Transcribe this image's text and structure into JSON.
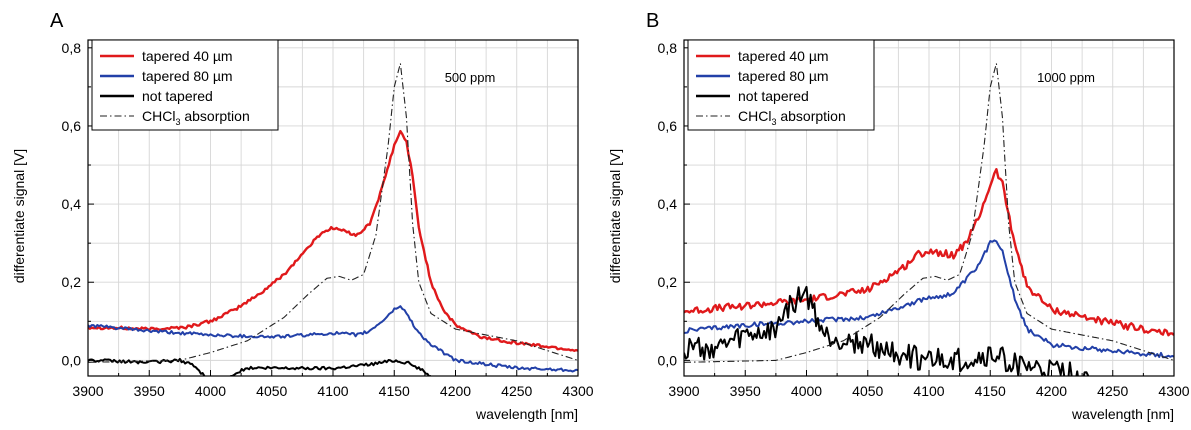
{
  "chart_data": [
    {
      "type": "line",
      "panel_label": "A",
      "annotation": "500 ppm",
      "xlabel": "wavelength [nm]",
      "ylabel": "differentiate signal [V]",
      "xlim": [
        3900,
        4300
      ],
      "ylim": [
        -0.04,
        0.82
      ],
      "xticks": [
        3900,
        3950,
        4000,
        4050,
        4100,
        4150,
        4200,
        4250,
        4300
      ],
      "xtick_labels": [
        "3900",
        "3950",
        "4000",
        "4050",
        "4100",
        "4150",
        "4200",
        "4250",
        "4300"
      ],
      "yticks": [
        0.0,
        0.2,
        0.4,
        0.6,
        0.8
      ],
      "ytick_labels": [
        "0,0",
        "0,2",
        "0,4",
        "0,6",
        "0,8"
      ],
      "grid": true,
      "legend_position": "top-left",
      "series": [
        {
          "name": "tapered 40 µm",
          "color": "#e0191b",
          "style": "solid",
          "noise": 0.004,
          "x": [
            3900,
            3950,
            3980,
            4000,
            4020,
            4040,
            4060,
            4080,
            4090,
            4100,
            4110,
            4120,
            4130,
            4140,
            4150,
            4155,
            4160,
            4165,
            4170,
            4180,
            4190,
            4200,
            4220,
            4250,
            4300
          ],
          "y": [
            0.085,
            0.08,
            0.085,
            0.1,
            0.13,
            0.17,
            0.22,
            0.29,
            0.325,
            0.34,
            0.33,
            0.32,
            0.35,
            0.44,
            0.55,
            0.585,
            0.56,
            0.47,
            0.34,
            0.2,
            0.13,
            0.09,
            0.06,
            0.045,
            0.025
          ]
        },
        {
          "name": "tapered 80 µm",
          "color": "#2240a8",
          "style": "solid",
          "noise": 0.004,
          "x": [
            3900,
            3950,
            4000,
            4050,
            4080,
            4100,
            4120,
            4130,
            4140,
            4150,
            4155,
            4160,
            4170,
            4180,
            4200,
            4250,
            4300
          ],
          "y": [
            0.09,
            0.075,
            0.065,
            0.06,
            0.065,
            0.07,
            0.065,
            0.075,
            0.1,
            0.13,
            0.14,
            0.12,
            0.07,
            0.04,
            0.0,
            -0.02,
            -0.025
          ]
        },
        {
          "name": "not tapered",
          "color": "#000000",
          "style": "solid",
          "noise": 0.004,
          "x": [
            3900,
            3950,
            3975,
            3985,
            3995,
            4000,
            4015,
            4030,
            4060,
            4100,
            4130,
            4150,
            4160,
            4170,
            4180
          ],
          "y": [
            0.0,
            -0.005,
            0.0,
            -0.01,
            -0.04,
            null,
            -0.04,
            -0.02,
            -0.02,
            -0.02,
            -0.01,
            0.0,
            -0.005,
            -0.02,
            -0.04
          ]
        },
        {
          "name": "CHCl3 absorption",
          "color": "#222222",
          "style": "dashdot",
          "noise": 0,
          "x": [
            3900,
            3975,
            4000,
            4030,
            4060,
            4080,
            4095,
            4105,
            4115,
            4125,
            4135,
            4145,
            4150,
            4155,
            4160,
            4165,
            4170,
            4180,
            4200,
            4250,
            4300
          ],
          "y": [
            -0.005,
            0.0,
            0.02,
            0.05,
            0.11,
            0.17,
            0.21,
            0.215,
            0.205,
            0.22,
            0.32,
            0.55,
            0.7,
            0.76,
            0.62,
            0.35,
            0.2,
            0.12,
            0.08,
            0.05,
            0.0
          ]
        }
      ]
    },
    {
      "type": "line",
      "panel_label": "B",
      "annotation": "1000 ppm",
      "xlabel": "wavelength [nm]",
      "ylabel": "differentiate signal [V]",
      "xlim": [
        3900,
        4300
      ],
      "ylim": [
        -0.04,
        0.82
      ],
      "xticks": [
        3900,
        3950,
        4000,
        4050,
        4100,
        4150,
        4200,
        4250,
        4300
      ],
      "xtick_labels": [
        "3900",
        "3950",
        "4000",
        "4050",
        "4100",
        "4150",
        "4200",
        "4250",
        "4300"
      ],
      "yticks": [
        0.0,
        0.2,
        0.4,
        0.6,
        0.8
      ],
      "ytick_labels": [
        "0,0",
        "0,2",
        "0,4",
        "0,6",
        "0,8"
      ],
      "grid": true,
      "legend_position": "top-left",
      "series": [
        {
          "name": "tapered 40 µm",
          "color": "#e0191b",
          "style": "solid",
          "noise": 0.009,
          "x": [
            3900,
            3950,
            4000,
            4050,
            4080,
            4090,
            4100,
            4120,
            4130,
            4140,
            4150,
            4155,
            4160,
            4170,
            4180,
            4200,
            4250,
            4300
          ],
          "y": [
            0.125,
            0.14,
            0.155,
            0.18,
            0.24,
            0.27,
            0.28,
            0.27,
            0.3,
            0.36,
            0.45,
            0.485,
            0.45,
            0.3,
            0.19,
            0.13,
            0.095,
            0.065
          ]
        },
        {
          "name": "tapered 80 µm",
          "color": "#2240a8",
          "style": "solid",
          "noise": 0.006,
          "x": [
            3900,
            3950,
            4000,
            4050,
            4080,
            4100,
            4120,
            4140,
            4150,
            4155,
            4160,
            4170,
            4180,
            4200,
            4250,
            4300
          ],
          "y": [
            0.075,
            0.09,
            0.1,
            0.11,
            0.14,
            0.16,
            0.17,
            0.24,
            0.3,
            0.31,
            0.28,
            0.16,
            0.08,
            0.04,
            0.025,
            0.01
          ]
        },
        {
          "name": "not tapered",
          "color": "#000000",
          "style": "solid",
          "noise": 0.03,
          "x": [
            3900,
            3930,
            3950,
            3970,
            3985,
            3995,
            4000,
            4005,
            4015,
            4030,
            4050,
            4070,
            4100,
            4130,
            4150,
            4160,
            4170,
            4180,
            4200,
            4230
          ],
          "y": [
            0.03,
            0.03,
            0.06,
            0.07,
            0.13,
            0.17,
            0.165,
            0.13,
            0.06,
            0.05,
            0.04,
            0.02,
            0.0,
            0.0,
            0.01,
            0.005,
            -0.01,
            -0.02,
            -0.03,
            -0.04
          ]
        },
        {
          "name": "CHCl3 absorption",
          "color": "#222222",
          "style": "dashdot",
          "noise": 0,
          "x": [
            3900,
            3975,
            4000,
            4030,
            4060,
            4080,
            4095,
            4105,
            4115,
            4125,
            4135,
            4145,
            4150,
            4155,
            4160,
            4165,
            4170,
            4180,
            4200,
            4250,
            4300
          ],
          "y": [
            -0.005,
            0.0,
            0.02,
            0.05,
            0.11,
            0.17,
            0.21,
            0.215,
            0.205,
            0.22,
            0.32,
            0.55,
            0.7,
            0.76,
            0.62,
            0.35,
            0.2,
            0.12,
            0.08,
            0.05,
            0.0
          ]
        }
      ]
    }
  ]
}
